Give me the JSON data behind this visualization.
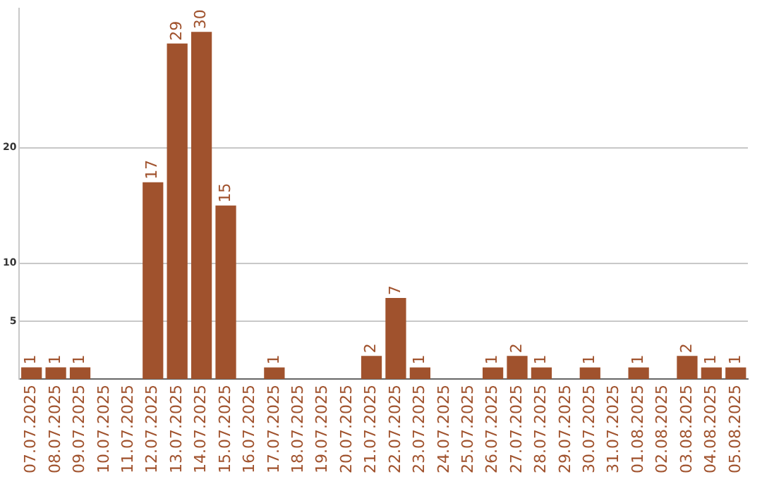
{
  "chart_data": {
    "type": "bar",
    "categories": [
      "07.07.2025",
      "08.07.2025",
      "09.07.2025",
      "10.07.2025",
      "11.07.2025",
      "12.07.2025",
      "13.07.2025",
      "14.07.2025",
      "15.07.2025",
      "16.07.2025",
      "17.07.2025",
      "18.07.2025",
      "19.07.2025",
      "20.07.2025",
      "21.07.2025",
      "22.07.2025",
      "23.07.2025",
      "24.07.2025",
      "25.07.2025",
      "26.07.2025",
      "27.07.2025",
      "28.07.2025",
      "29.07.2025",
      "30.07.2025",
      "31.07.2025",
      "01.08.2025",
      "02.08.2025",
      "03.08.2025",
      "04.08.2025",
      "05.08.2025"
    ],
    "values": [
      1,
      1,
      1,
      null,
      null,
      17,
      29,
      30,
      15,
      null,
      1,
      null,
      null,
      null,
      2,
      7,
      1,
      null,
      null,
      1,
      2,
      1,
      null,
      1,
      null,
      1,
      null,
      2,
      1,
      1
    ],
    "color": "#a0522d",
    "ylim": [
      0,
      32
    ],
    "yticks": [
      5,
      10,
      20
    ],
    "grid": "y",
    "legend": false,
    "data_labels": true
  }
}
